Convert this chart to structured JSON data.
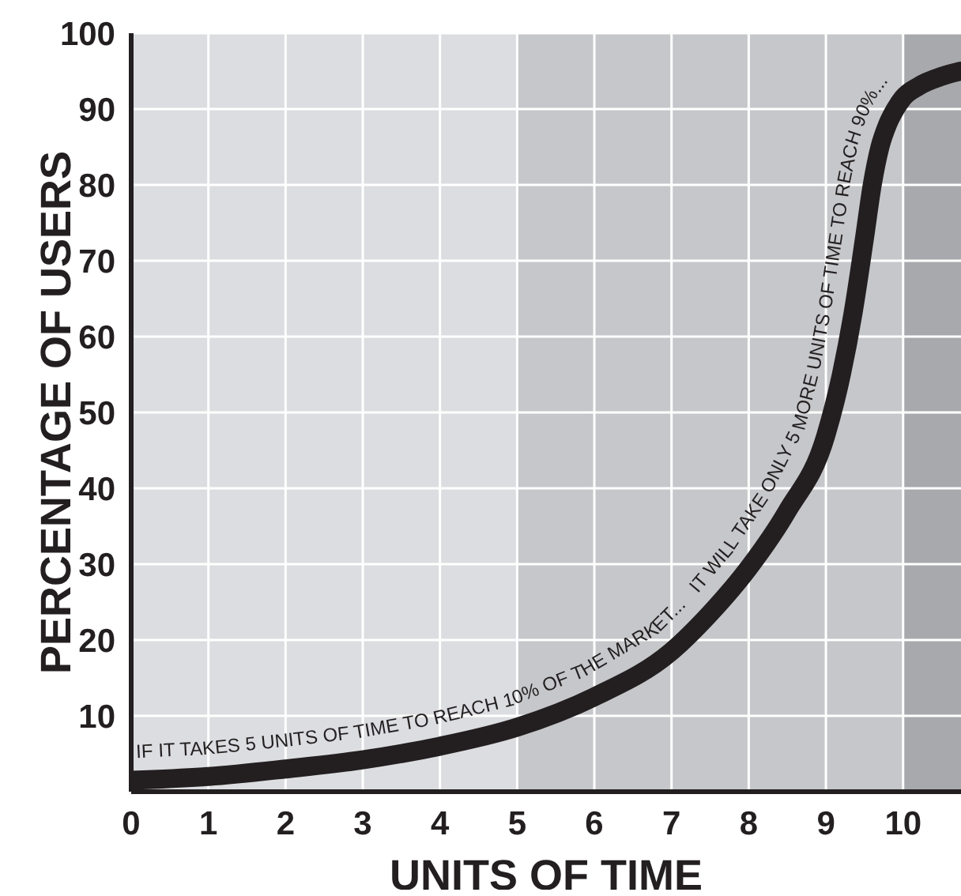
{
  "chart_data": {
    "type": "line",
    "xlabel": "UNITS OF TIME",
    "ylabel": "PERCENTAGE OF USERS",
    "x": [
      0,
      1,
      2,
      3,
      4,
      5,
      6,
      7,
      7.5,
      8,
      8.5,
      9,
      9.2,
      9.35,
      9.5,
      9.6,
      9.7,
      9.8,
      9.9,
      10,
      10.2,
      10.5,
      10.75
    ],
    "series": [
      {
        "color": "#231f20",
        "values": [
          1.5,
          2,
          3,
          4.2,
          6,
          8.5,
          12.5,
          18.5,
          23.5,
          29.5,
          37,
          47,
          55,
          63,
          73,
          80,
          85,
          88,
          90,
          91.5,
          93,
          94.3,
          95
        ]
      }
    ],
    "xlim": [
      0,
      10.75
    ],
    "ylim": [
      0,
      100
    ],
    "xticks": [
      0,
      1,
      2,
      3,
      4,
      5,
      6,
      7,
      8,
      9,
      10
    ],
    "yticks": [
      10,
      20,
      30,
      40,
      50,
      60,
      70,
      80,
      90,
      100
    ],
    "grid": true,
    "marker": "none",
    "line_style": "solid",
    "bands": [
      {
        "axis": "x",
        "from": 0,
        "to": 5,
        "color": "#dcdde0"
      },
      {
        "axis": "x",
        "from": 5,
        "to": 10,
        "color": "#c6c7ca"
      },
      {
        "axis": "x",
        "from": 10,
        "to": 10.75,
        "color": "#a8a9ac"
      }
    ],
    "annotations": [
      "IF IT TAKES 5 UNITS OF TIME TO REACH 10% OF THE MARKET...",
      "IT WILL TAKE ONLY 5 MORE UNITS OF TIME TO REACH 90%..."
    ]
  }
}
